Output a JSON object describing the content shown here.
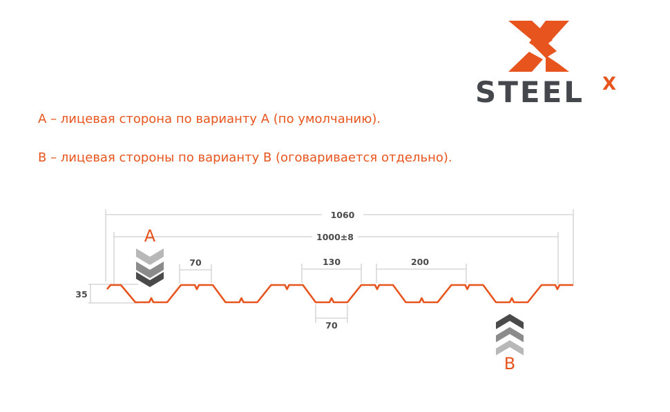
{
  "logo": {
    "text": "STEEL",
    "superscript": "X",
    "brand_colors": {
      "orange": "#e8541e",
      "gray": "#44474b"
    }
  },
  "legend": {
    "line_a": "А – лицевая сторона по варианту А (по умолчанию).",
    "line_b": "В – лицевая стороны по варианту В (оговаривается отдельно)."
  },
  "diagram": {
    "side_a_label": "A",
    "side_b_label": "B",
    "dimensions": {
      "total_width": "1060",
      "useful_width": "1000±8",
      "top_flange": "70",
      "rib_top": "130",
      "pitch": "200",
      "rib_bottom": "70",
      "height": "35"
    },
    "profile_color": "#e8541e"
  }
}
